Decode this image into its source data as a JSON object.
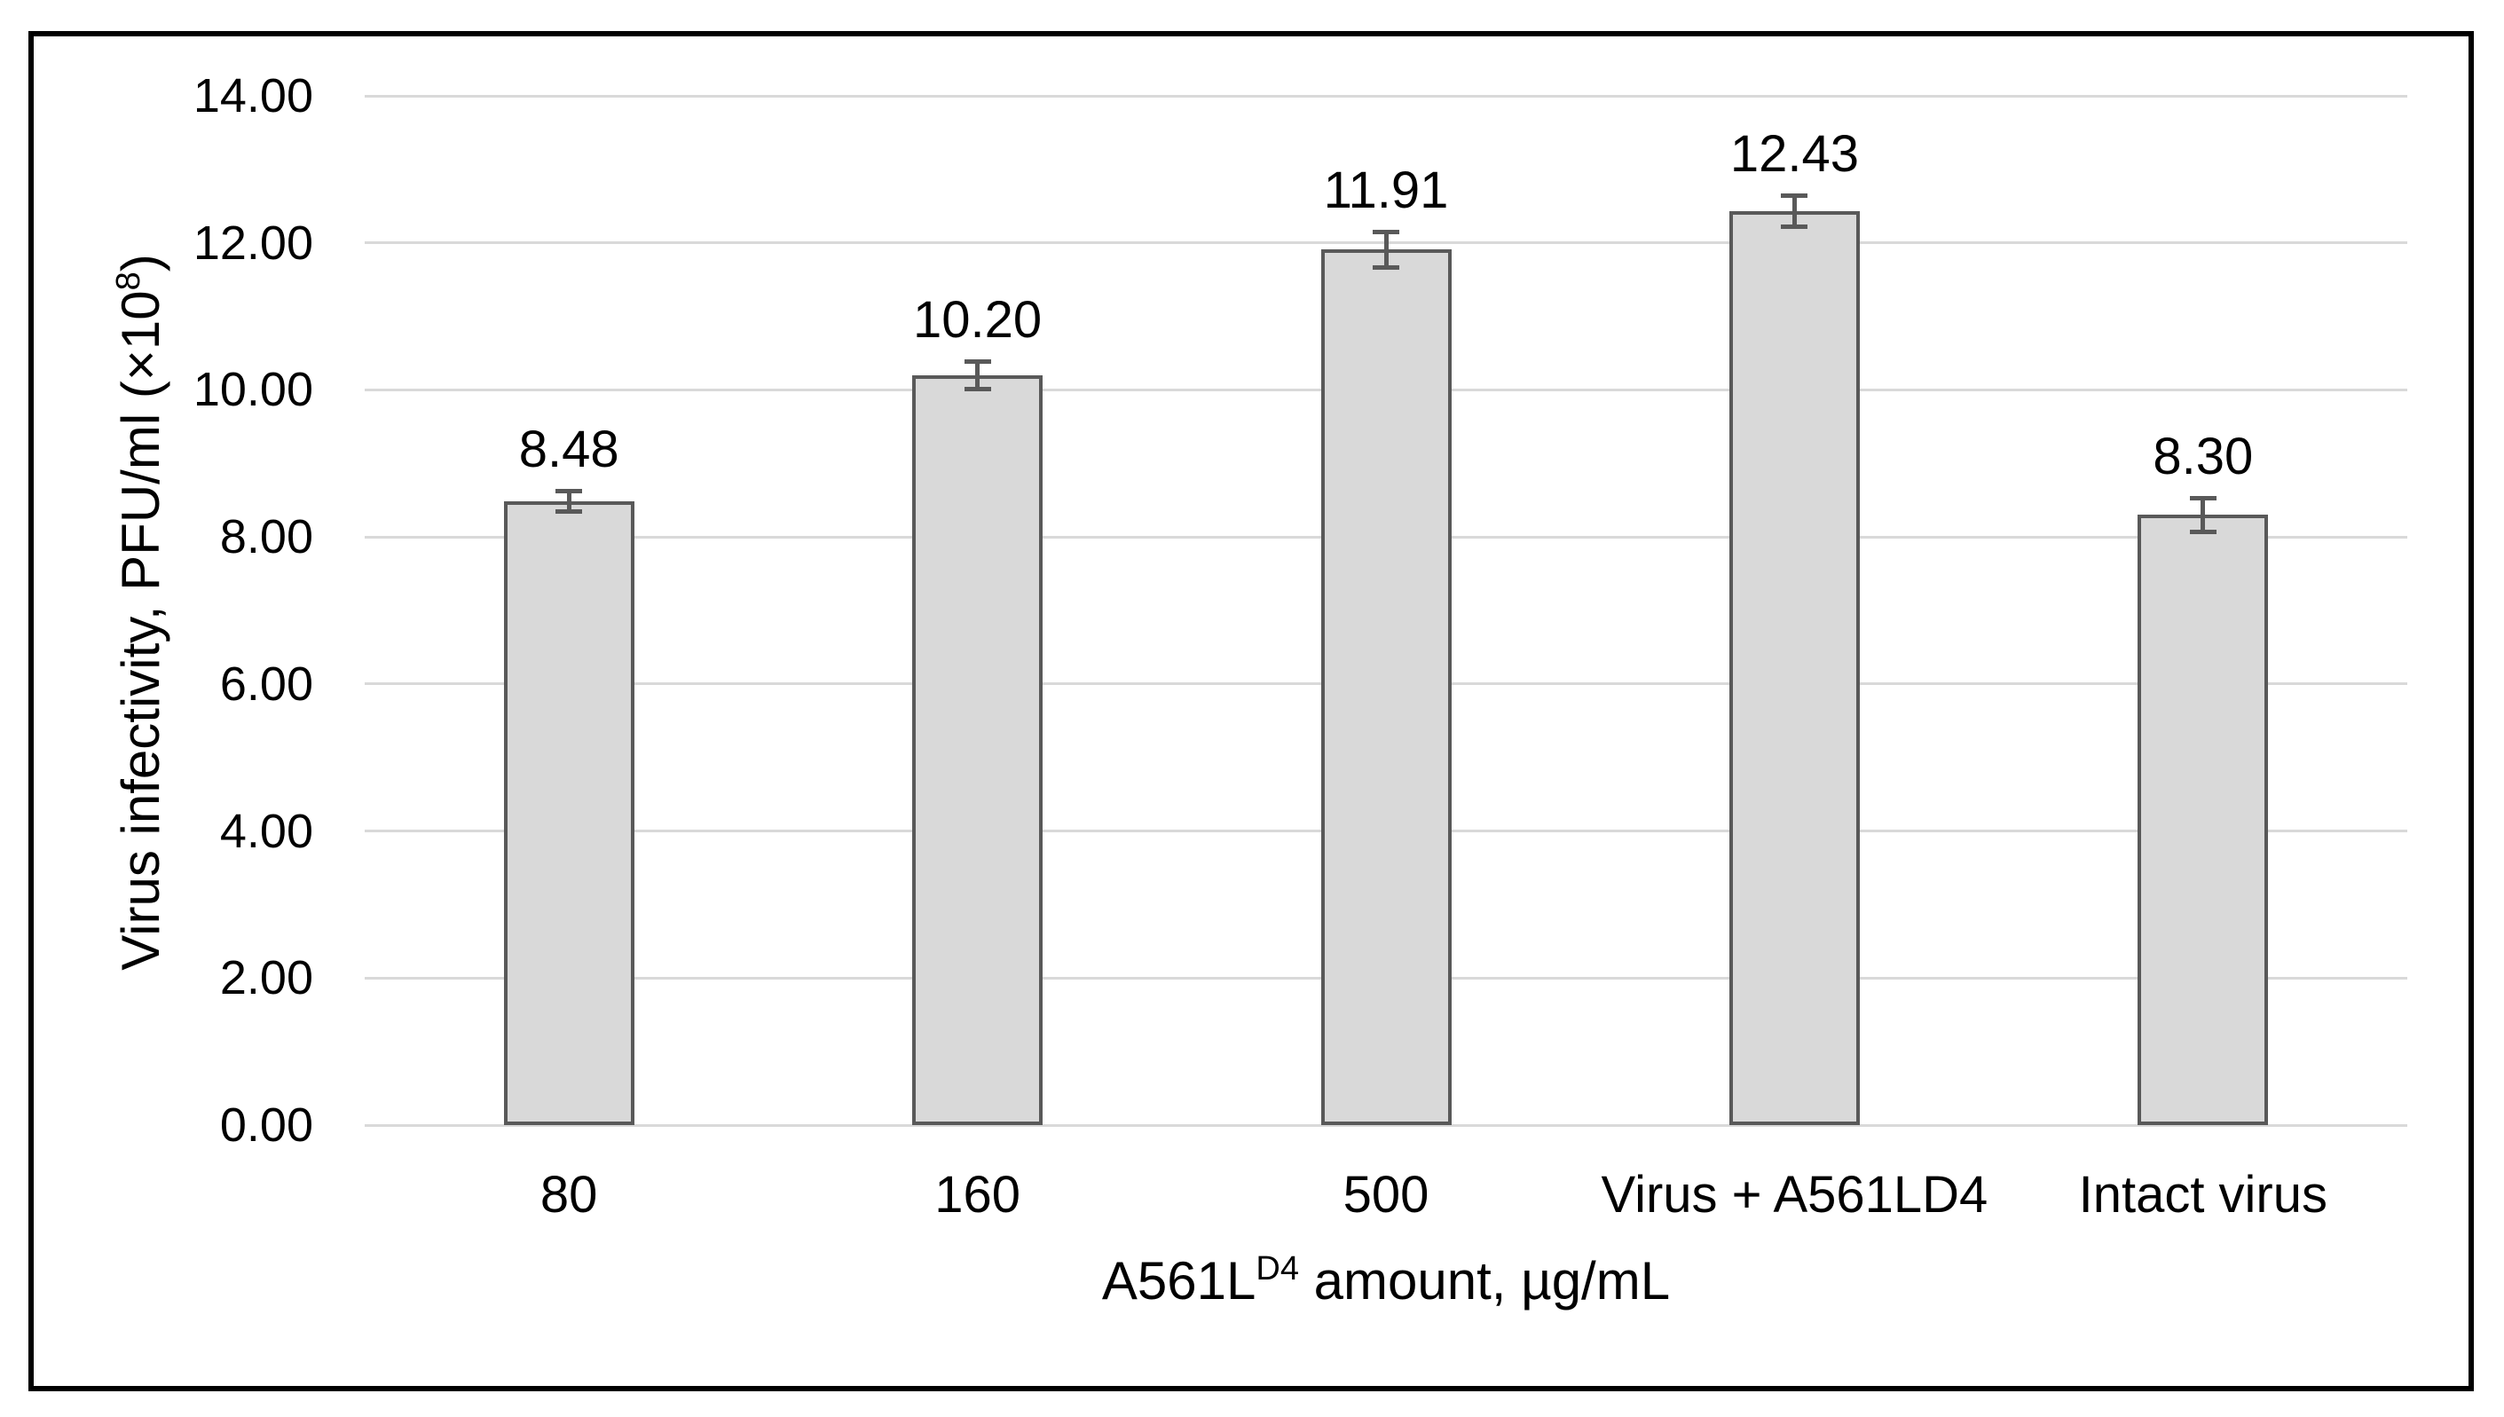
{
  "chart_data": {
    "type": "bar",
    "categories": [
      "80",
      "160",
      "500",
      "Virus + A561LD4",
      "Intact virus"
    ],
    "values": [
      8.48,
      10.2,
      11.91,
      12.43,
      8.3
    ],
    "data_labels": [
      "8.48",
      "10.20",
      "11.91",
      "12.43",
      "8.30"
    ],
    "errors": [
      0.17,
      0.22,
      0.27,
      0.24,
      0.26
    ],
    "ytick_values": [
      0,
      2,
      4,
      6,
      8,
      10,
      12,
      14
    ],
    "ytick_labels": [
      "0.00",
      "2.00",
      "4.00",
      "6.00",
      "8.00",
      "10.00",
      "12.00",
      "14.00"
    ],
    "ylim": [
      0,
      14
    ],
    "grid": true,
    "legend": "none",
    "title": "",
    "ylabel_parts": {
      "text": "Virus infectivity, PFU/ml (×10",
      "sup": "8",
      "after": ")"
    },
    "xlabel_parts": {
      "text": "A561L",
      "sup": "D4",
      "after": " amount, µg/mL"
    },
    "colors": {
      "bar_fill": "#d9d9d9",
      "bar_border": "#595959",
      "error_bar": "#595959",
      "gridline": "#d9d9d9",
      "frame_border": "#000000",
      "text": "#000000",
      "background": "#ffffff"
    }
  }
}
